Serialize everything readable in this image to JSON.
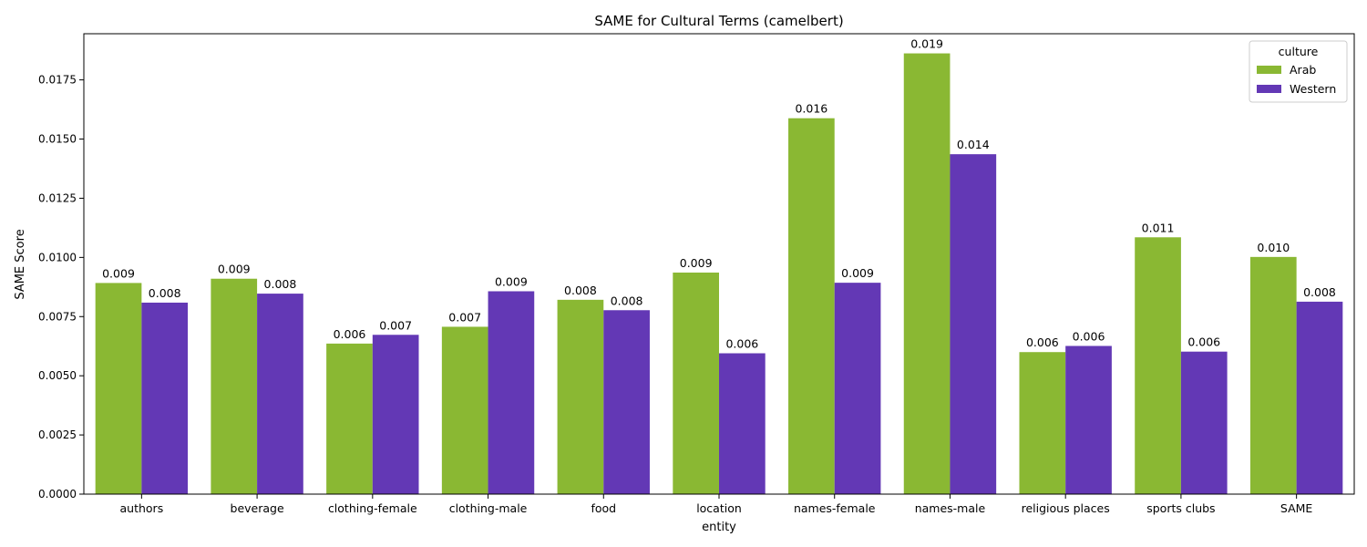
{
  "chart_data": {
    "type": "bar",
    "title": "SAME for Cultural Terms (camelbert)",
    "xlabel": "entity",
    "ylabel": "SAME Score",
    "ylim": [
      0,
      0.01945
    ],
    "yticks": [
      "0.0000",
      "0.0025",
      "0.0050",
      "0.0075",
      "0.0100",
      "0.0125",
      "0.0150",
      "0.0175"
    ],
    "grid": false,
    "legend": {
      "title": "culture",
      "position": "top-right"
    },
    "categories": [
      "authors",
      "beverage",
      "clothing-female",
      "clothing-male",
      "food",
      "location",
      "names-female",
      "names-male",
      "religious places",
      "sports clubs",
      "SAME"
    ],
    "series": [
      {
        "name": "Arab",
        "color": "#8ab833",
        "values": [
          0.00892,
          0.0091,
          0.00636,
          0.00707,
          0.00821,
          0.00936,
          0.01588,
          0.01862,
          0.006,
          0.01085,
          0.01002
        ],
        "labels": [
          "0.009",
          "0.009",
          "0.006",
          "0.007",
          "0.008",
          "0.009",
          "0.016",
          "0.019",
          "0.006",
          "0.011",
          "0.010"
        ]
      },
      {
        "name": "Western",
        "color": "#6338b5",
        "values": [
          0.00809,
          0.00847,
          0.00673,
          0.00857,
          0.00777,
          0.00595,
          0.00893,
          0.01436,
          0.00626,
          0.00602,
          0.00813
        ],
        "labels": [
          "0.008",
          "0.008",
          "0.007",
          "0.009",
          "0.008",
          "0.006",
          "0.009",
          "0.014",
          "0.006",
          "0.006",
          "0.008"
        ]
      }
    ]
  }
}
